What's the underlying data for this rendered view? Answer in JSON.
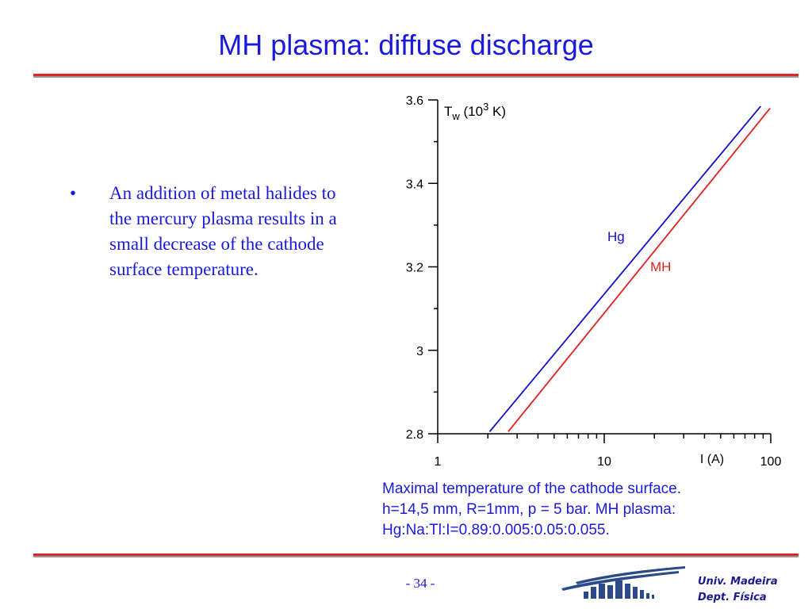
{
  "slide": {
    "title": "MH plasma: diffuse discharge",
    "bullet_marker": "•",
    "bullet_text": "An addition of metal halides to the mercury plasma results in a small decrease of the cathode surface temperature.",
    "caption_lines": [
      "Maximal temperature of the cathode surface.",
      "h=14,5 mm, R=1mm, p = 5 bar. MH plasma:",
      "Hg:Na:Tl:I=0.89:0.005:0.05:0.055."
    ],
    "page_number": "- 34 -",
    "institution_line1": "Univ. Madeira",
    "institution_line2": "Dept. Física"
  },
  "colors": {
    "title_blue": "#1a1adb",
    "rule_red": "#e0252b",
    "rule_grey": "#9a9a9a",
    "hg_line": "#1010d0",
    "mh_line": "#e02020",
    "logo_blue": "#2a4a8a"
  },
  "chart_data": {
    "type": "line",
    "x_scale": "log",
    "xlim": [
      1,
      100
    ],
    "ylim": [
      2.8,
      3.6
    ],
    "x_tick_labels": [
      "1",
      "10",
      "100"
    ],
    "x_tick_values": [
      1,
      10,
      100
    ],
    "y_tick_labels": [
      "2.8",
      "3",
      "3.2",
      "3.4",
      "3.6"
    ],
    "y_tick_values": [
      2.8,
      3.0,
      3.2,
      3.4,
      3.6
    ],
    "xlabel": "I (A)",
    "ylabel_main": "T",
    "ylabel_sub": "w",
    "ylabel_mid": " (10",
    "ylabel_sup": "3",
    "ylabel_end": " K)",
    "grid": false,
    "series": [
      {
        "name": "Hg",
        "color": "#1010d0",
        "points": [
          [
            2.05,
            2.805
          ],
          [
            87.0,
            3.585
          ]
        ]
      },
      {
        "name": "MH",
        "color": "#e02020",
        "points": [
          [
            2.65,
            2.805
          ],
          [
            99.0,
            3.58
          ]
        ]
      }
    ]
  }
}
